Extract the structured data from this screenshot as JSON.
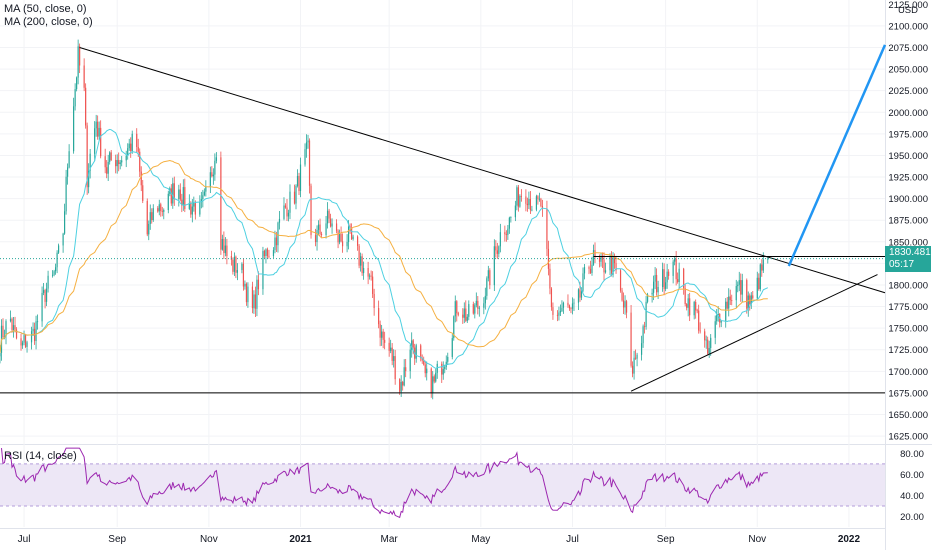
{
  "legend": {
    "ma50": "MA (50, close, 0)",
    "ma200": "MA (200, close, 0)",
    "rsi": "RSI (14, close)"
  },
  "price_axis": {
    "currency": "USD",
    "top_partial": "2125.000",
    "ticks": [
      "2100.000",
      "2075.000",
      "2050.000",
      "2025.000",
      "2000.000",
      "1975.000",
      "1950.000",
      "1925.000",
      "1900.000",
      "1875.000",
      "1850.000",
      "1825.000",
      "1800.000",
      "1775.000",
      "1750.000",
      "1725.000",
      "1700.000",
      "1675.000",
      "1650.000",
      "1625.000"
    ]
  },
  "rsi_axis": {
    "ticks": [
      "80.00",
      "60.00",
      "40.00",
      "20.00"
    ]
  },
  "time_axis": {
    "labels": [
      "Jul",
      "Sep",
      "Nov",
      "2021",
      "Mar",
      "May",
      "Jul",
      "Sep",
      "Nov",
      "2022"
    ]
  },
  "last_price": {
    "value": "1830.481",
    "countdown": "05:17"
  },
  "colors": {
    "up": "#26a69a",
    "down": "#ef5350",
    "ma50": "#4dd0e1",
    "ma200": "#f5b041",
    "rsi_line": "#9c27b0",
    "rsi_band": "#ede7f6",
    "trend": "#000000",
    "projection": "#2196f3",
    "badge": "#26a69a"
  },
  "chart_data": [
    {
      "type": "candlestick",
      "title": "",
      "y_unit": "USD",
      "ylim": [
        1617,
        2130
      ],
      "x_range": [
        "2020-06-15",
        "2022-01-25"
      ],
      "anchors_close": [
        [
          "2020-06-15",
          1730
        ],
        [
          "2020-06-22",
          1765
        ],
        [
          "2020-06-29",
          1720
        ],
        [
          "2020-07-06",
          1745
        ],
        [
          "2020-07-13",
          1775
        ],
        [
          "2020-07-20",
          1810
        ],
        [
          "2020-07-27",
          1860
        ],
        [
          "2020-07-31",
          1960
        ],
        [
          "2020-08-06",
          2070
        ],
        [
          "2020-08-10",
          2020
        ],
        [
          "2020-08-12",
          1920
        ],
        [
          "2020-08-18",
          1995
        ],
        [
          "2020-08-25",
          1930
        ],
        [
          "2020-09-01",
          1950
        ],
        [
          "2020-09-14",
          1960
        ],
        [
          "2020-09-21",
          1860
        ],
        [
          "2020-09-28",
          1890
        ],
        [
          "2020-10-12",
          1910
        ],
        [
          "2020-10-26",
          1880
        ],
        [
          "2020-11-06",
          1955
        ],
        [
          "2020-11-09",
          1850
        ],
        [
          "2020-11-24",
          1805
        ],
        [
          "2020-11-30",
          1775
        ],
        [
          "2020-12-10",
          1840
        ],
        [
          "2020-12-21",
          1880
        ],
        [
          "2021-01-06",
          1950
        ],
        [
          "2021-01-08",
          1860
        ],
        [
          "2021-01-20",
          1870
        ],
        [
          "2021-02-01",
          1850
        ],
        [
          "2021-02-10",
          1835
        ],
        [
          "2021-02-26",
          1735
        ],
        [
          "2021-03-08",
          1685
        ],
        [
          "2021-03-15",
          1730
        ],
        [
          "2021-03-31",
          1680
        ],
        [
          "2021-04-15",
          1770
        ],
        [
          "2021-04-30",
          1770
        ],
        [
          "2021-05-10",
          1835
        ],
        [
          "2021-05-25",
          1900
        ],
        [
          "2021-06-01",
          1905
        ],
        [
          "2021-06-10",
          1890
        ],
        [
          "2021-06-17",
          1775
        ],
        [
          "2021-06-30",
          1765
        ],
        [
          "2021-07-15",
          1830
        ],
        [
          "2021-07-30",
          1815
        ],
        [
          "2021-08-06",
          1765
        ],
        [
          "2021-08-09",
          1690
        ],
        [
          "2021-08-20",
          1780
        ],
        [
          "2021-09-03",
          1825
        ],
        [
          "2021-09-15",
          1790
        ],
        [
          "2021-09-29",
          1725
        ],
        [
          "2021-10-14",
          1795
        ],
        [
          "2021-10-29",
          1785
        ],
        [
          "2021-11-05",
          1815
        ],
        [
          "2021-11-08",
          1830
        ]
      ],
      "trend_lines": [
        {
          "name": "descending-resistance",
          "from": [
            "2020-08-07",
            2075
          ],
          "to": [
            "2022-01-25",
            1791
          ]
        },
        {
          "name": "horizontal-support",
          "from": [
            "2020-06-15",
            1675
          ],
          "to": [
            "2022-01-25",
            1675
          ]
        },
        {
          "name": "rising-support",
          "from": [
            "2021-08-09",
            1677
          ],
          "to": [
            "2022-01-20",
            1812
          ]
        },
        {
          "name": "range-top",
          "from": [
            "2021-07-15",
            1833
          ],
          "to": [
            "2022-01-25",
            1833
          ]
        }
      ],
      "projection": {
        "from": [
          "2021-11-22",
          1822
        ],
        "to": [
          "2022-01-25",
          2078
        ]
      }
    },
    {
      "type": "line",
      "title": "RSI (14, close)",
      "ylim": [
        10,
        87
      ],
      "overbought": 70,
      "oversold": 30,
      "min": 15,
      "max": 85
    }
  ]
}
